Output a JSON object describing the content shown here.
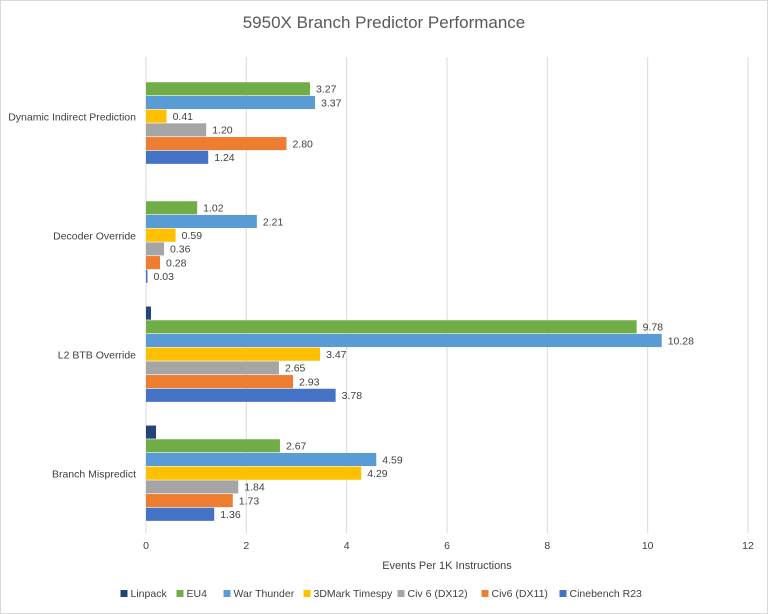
{
  "chart_data": {
    "type": "bar",
    "orientation": "horizontal",
    "title": "5950X Branch Predictor Performance",
    "xlabel": "Events Per 1K Instructions",
    "ylabel": "",
    "xlim": [
      0,
      12
    ],
    "xticks": [
      0,
      2,
      4,
      6,
      8,
      10,
      12
    ],
    "grid": true,
    "legend_position": "bottom",
    "categories": [
      "Dynamic Indirect Prediction",
      "Decoder Override",
      "L2 BTB Override",
      "Branch Mispredict"
    ],
    "series": [
      {
        "name": "Linpack",
        "color": "#264478",
        "values": [
          null,
          null,
          0.1,
          0.2
        ],
        "labels": [
          "",
          "",
          "",
          ""
        ]
      },
      {
        "name": "EU4",
        "color": "#70AD47",
        "values": [
          3.27,
          1.02,
          9.78,
          2.67
        ],
        "labels": [
          "3.27",
          "1.02",
          "9.78",
          "2.67"
        ]
      },
      {
        "name": "War Thunder",
        "color": "#5B9BD5",
        "values": [
          3.37,
          2.21,
          10.28,
          4.59
        ],
        "labels": [
          "3.37",
          "2.21",
          "10.28",
          "4.59"
        ]
      },
      {
        "name": "3DMark Timespy",
        "color": "#FFC000",
        "values": [
          0.41,
          0.59,
          3.47,
          4.29
        ],
        "labels": [
          "0.41",
          "0.59",
          "3.47",
          "4.29"
        ]
      },
      {
        "name": "Civ 6 (DX12)",
        "color": "#A5A5A5",
        "values": [
          1.2,
          0.36,
          2.65,
          1.84
        ],
        "labels": [
          "1.20",
          "0.36",
          "2.65",
          "1.84"
        ]
      },
      {
        "name": "Civ6 (DX11)",
        "color": "#ED7D31",
        "values": [
          2.8,
          0.28,
          2.93,
          1.73
        ],
        "labels": [
          "2.80",
          "0.28",
          "2.93",
          "1.73"
        ]
      },
      {
        "name": "Cinebench R23",
        "color": "#4472C4",
        "values": [
          1.24,
          0.03,
          3.78,
          1.36
        ],
        "labels": [
          "1.24",
          "0.03",
          "3.78",
          "1.36"
        ]
      }
    ]
  }
}
